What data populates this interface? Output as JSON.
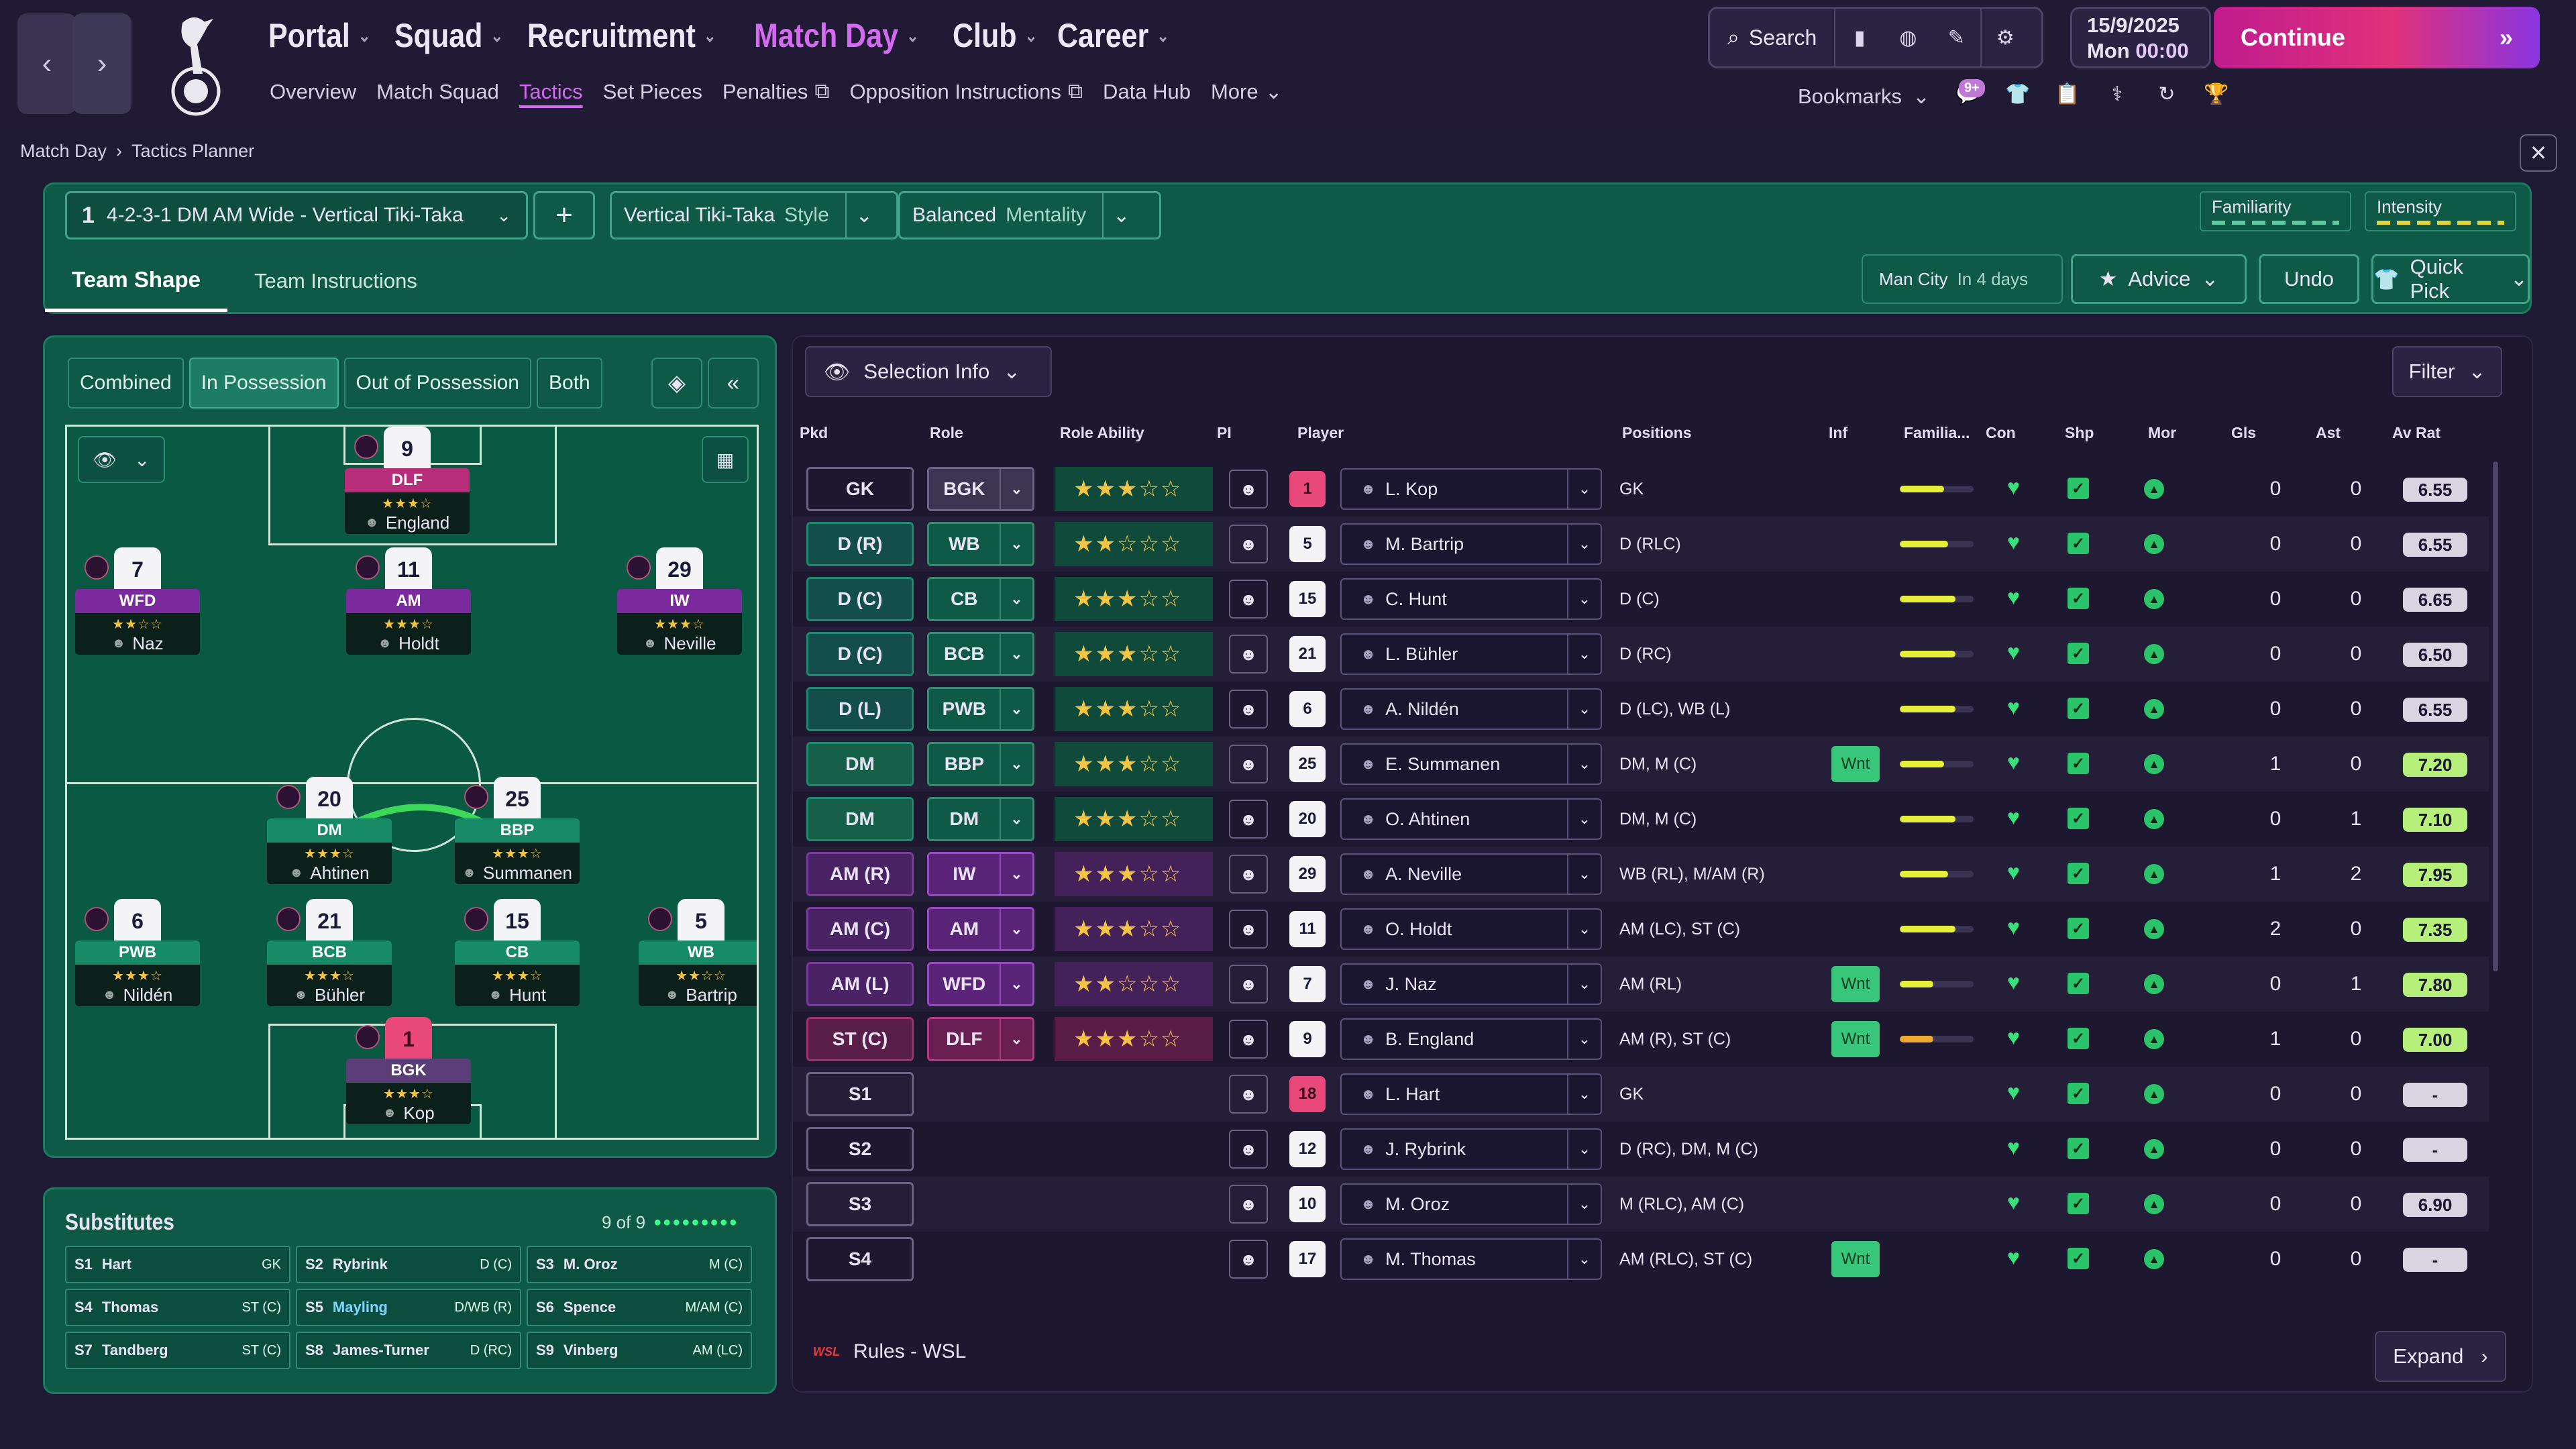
{
  "topnav": {
    "main": [
      {
        "label": "Portal",
        "active": false
      },
      {
        "label": "Squad",
        "active": false
      },
      {
        "label": "Recruitment",
        "active": false
      },
      {
        "label": "Match Day",
        "active": true
      },
      {
        "label": "Club",
        "active": false
      },
      {
        "label": "Career",
        "active": false
      }
    ],
    "sub": [
      "Overview",
      "Match Squad",
      "Tactics",
      "Set Pieces",
      "Penalties",
      "Opposition Instructions",
      "Data Hub",
      "More"
    ],
    "search_label": "Search",
    "date": "15/9/2025",
    "day": "Mon",
    "time": "00:00",
    "continue_label": "Continue",
    "bookmarks_label": "Bookmarks",
    "badge": "9+"
  },
  "breadcrumb": {
    "parent": "Match Day",
    "current": "Tactics Planner"
  },
  "tactics": {
    "slot": "1",
    "name": "4-2-3-1 DM AM Wide - Vertical Tiki-Taka",
    "style_value": "Vertical Tiki-Taka",
    "style_label": "Style",
    "mentality_value": "Balanced",
    "mentality_label": "Mentality",
    "familiarity_label": "Familiarity",
    "intensity_label": "Intensity",
    "tabs": [
      "Team Shape",
      "Team Instructions"
    ],
    "opponent": "Man City",
    "opponent_when": "In 4 days",
    "advice_label": "Advice",
    "undo_label": "Undo",
    "quickpick_label": "Quick Pick"
  },
  "pitch_modes": [
    "Combined",
    "In Possession",
    "Out of Possession",
    "Both"
  ],
  "players_on_pitch": [
    {
      "num": "9",
      "role": "DLF",
      "name": "England",
      "stars": "★★★☆",
      "color": "mag"
    },
    {
      "num": "7",
      "role": "WFD",
      "name": "Naz",
      "stars": "★★☆☆",
      "color": "pur"
    },
    {
      "num": "11",
      "role": "AM",
      "name": "Holdt",
      "stars": "★★★☆",
      "color": "pur"
    },
    {
      "num": "29",
      "role": "IW",
      "name": "Neville",
      "stars": "★★★☆",
      "color": "pur"
    },
    {
      "num": "20",
      "role": "DM",
      "name": "Ahtinen",
      "stars": "★★★☆",
      "color": "grn"
    },
    {
      "num": "25",
      "role": "BBP",
      "name": "Summanen",
      "stars": "★★★☆",
      "color": "grn"
    },
    {
      "num": "6",
      "role": "PWB",
      "name": "Nildén",
      "stars": "★★★☆",
      "color": "grn"
    },
    {
      "num": "21",
      "role": "BCB",
      "name": "Bühler",
      "stars": "★★★☆",
      "color": "grn"
    },
    {
      "num": "15",
      "role": "CB",
      "name": "Hunt",
      "stars": "★★★☆",
      "color": "grn"
    },
    {
      "num": "5",
      "role": "WB",
      "name": "Bartrip",
      "stars": "★★☆☆",
      "color": "grn"
    },
    {
      "num": "1",
      "role": "BGK",
      "name": "Kop",
      "stars": "★★★☆",
      "color": "gk"
    }
  ],
  "substitutes": {
    "title": "Substitutes",
    "count": "9 of 9",
    "items": [
      {
        "slot": "S1",
        "name": "Hart",
        "pos": "GK"
      },
      {
        "slot": "S2",
        "name": "Rybrink",
        "pos": "D (C)"
      },
      {
        "slot": "S3",
        "name": "M. Oroz",
        "pos": "M (C)"
      },
      {
        "slot": "S4",
        "name": "Thomas",
        "pos": "ST (C)"
      },
      {
        "slot": "S5",
        "name": "Mayling",
        "pos": "D/WB (R)"
      },
      {
        "slot": "S6",
        "name": "Spence",
        "pos": "M/AM (C)"
      },
      {
        "slot": "S7",
        "name": "Tandberg",
        "pos": "ST (C)"
      },
      {
        "slot": "S8",
        "name": "James-Turner",
        "pos": "D (RC)"
      },
      {
        "slot": "S9",
        "name": "Vinberg",
        "pos": "AM (LC)"
      }
    ]
  },
  "table": {
    "selinfo_label": "Selection Info",
    "filter_label": "Filter",
    "headers": {
      "pkd": "Pkd",
      "role": "Role",
      "ra": "Role Ability",
      "pi": "PI",
      "player": "Player",
      "positions": "Positions",
      "inf": "Inf",
      "fam": "Familia...",
      "con": "Con",
      "shp": "Shp",
      "mor": "Mor",
      "gls": "Gls",
      "ast": "Ast",
      "av": "Av Rat"
    },
    "rows": [
      {
        "pkd": "GK",
        "kind": "sub",
        "role": "BGK",
        "rc": "gkc",
        "ra": "★★★☆☆",
        "rac": "",
        "num": "1",
        "gk": true,
        "player": "L. Kop",
        "pos": "GK",
        "inf": "",
        "fam": 0.6,
        "gls": "0",
        "ast": "0",
        "av": "6.55"
      },
      {
        "pkd": "D (R)",
        "kind": "def",
        "role": "WB",
        "rc": "dfc",
        "ra": "★★☆☆☆",
        "rac": "",
        "num": "5",
        "player": "M. Bartrip",
        "pos": "D (RLC)",
        "inf": "",
        "fam": 0.65,
        "gls": "0",
        "ast": "0",
        "av": "6.55"
      },
      {
        "pkd": "D (C)",
        "kind": "def",
        "role": "CB",
        "rc": "dfc",
        "ra": "★★★☆☆",
        "rac": "",
        "num": "15",
        "player": "C. Hunt",
        "pos": "D (C)",
        "inf": "",
        "fam": 0.75,
        "gls": "0",
        "ast": "0",
        "av": "6.65"
      },
      {
        "pkd": "D (C)",
        "kind": "def",
        "role": "BCB",
        "rc": "dfc",
        "ra": "★★★☆☆",
        "rac": "",
        "num": "21",
        "player": "L. Bühler",
        "pos": "D (RC)",
        "inf": "",
        "fam": 0.75,
        "gls": "0",
        "ast": "0",
        "av": "6.50"
      },
      {
        "pkd": "D (L)",
        "kind": "def",
        "role": "PWB",
        "rc": "dfc",
        "ra": "★★★☆☆",
        "rac": "",
        "num": "6",
        "player": "A. Nildén",
        "pos": "D (LC), WB (L)",
        "inf": "",
        "fam": 0.75,
        "gls": "0",
        "ast": "0",
        "av": "6.55"
      },
      {
        "pkd": "DM",
        "kind": "dm",
        "role": "BBP",
        "rc": "dfc",
        "ra": "★★★☆☆",
        "rac": "",
        "num": "25",
        "player": "E. Summanen",
        "pos": "DM, M (C)",
        "inf": "Wnt",
        "fam": 0.6,
        "gls": "1",
        "ast": "0",
        "av": "7.20"
      },
      {
        "pkd": "DM",
        "kind": "dm",
        "role": "DM",
        "rc": "dfc",
        "ra": "★★★☆☆",
        "rac": "",
        "num": "20",
        "player": "O. Ahtinen",
        "pos": "DM, M (C)",
        "inf": "",
        "fam": 0.75,
        "gls": "0",
        "ast": "1",
        "av": "7.10"
      },
      {
        "pkd": "AM (R)",
        "kind": "am",
        "role": "IW",
        "rc": "amc",
        "ra": "★★★☆☆",
        "rac": "am",
        "num": "29",
        "player": "A. Neville",
        "pos": "WB (RL), M/AM (R)",
        "inf": "",
        "fam": 0.65,
        "gls": "1",
        "ast": "2",
        "av": "7.95"
      },
      {
        "pkd": "AM (C)",
        "kind": "am",
        "role": "AM",
        "rc": "amc",
        "ra": "★★★☆☆",
        "rac": "am",
        "num": "11",
        "player": "O. Holdt",
        "pos": "AM (LC), ST (C)",
        "inf": "",
        "fam": 0.75,
        "gls": "2",
        "ast": "0",
        "av": "7.35"
      },
      {
        "pkd": "AM (L)",
        "kind": "am",
        "role": "WFD",
        "rc": "amc",
        "ra": "★★☆☆☆",
        "rac": "am",
        "num": "7",
        "player": "J. Naz",
        "pos": "AM (RL)",
        "inf": "Wnt",
        "fam": 0.45,
        "gls": "0",
        "ast": "1",
        "av": "7.80"
      },
      {
        "pkd": "ST (C)",
        "kind": "st",
        "role": "DLF",
        "rc": "stc",
        "ra": "★★★☆☆",
        "rac": "st",
        "num": "9",
        "player": "B. England",
        "pos": "AM (R), ST (C)",
        "inf": "Wnt",
        "fam": 0.45,
        "famc": "o",
        "gls": "1",
        "ast": "0",
        "av": "7.00"
      },
      {
        "pkd": "S1",
        "kind": "sub",
        "role": "",
        "ra": "",
        "num": "18",
        "gk": true,
        "player": "L. Hart",
        "pos": "GK",
        "inf": "",
        "fam": 0,
        "gls": "0",
        "ast": "0",
        "av": "-"
      },
      {
        "pkd": "S2",
        "kind": "sub",
        "role": "",
        "ra": "",
        "num": "12",
        "player": "J. Rybrink",
        "pos": "D (RC), DM, M (C)",
        "inf": "",
        "fam": 0,
        "gls": "0",
        "ast": "0",
        "av": "-"
      },
      {
        "pkd": "S3",
        "kind": "sub",
        "role": "",
        "ra": "",
        "num": "10",
        "player": "M. Oroz",
        "pos": "M (RLC), AM (C)",
        "inf": "",
        "fam": 0,
        "gls": "0",
        "ast": "0",
        "av": "6.90"
      },
      {
        "pkd": "S4",
        "kind": "sub",
        "role": "",
        "ra": "",
        "num": "17",
        "player": "M. Thomas",
        "pos": "AM (RLC), ST (C)",
        "inf": "Wnt",
        "fam": 0,
        "gls": "0",
        "ast": "0",
        "av": "-"
      }
    ],
    "footer_rules": "Rules - WSL",
    "footer_logo": "WSL",
    "expand_label": "Expand"
  },
  "colors": {
    "accent": "#d46af0",
    "panel": "#0f5a47",
    "continue": "#e0317a"
  }
}
